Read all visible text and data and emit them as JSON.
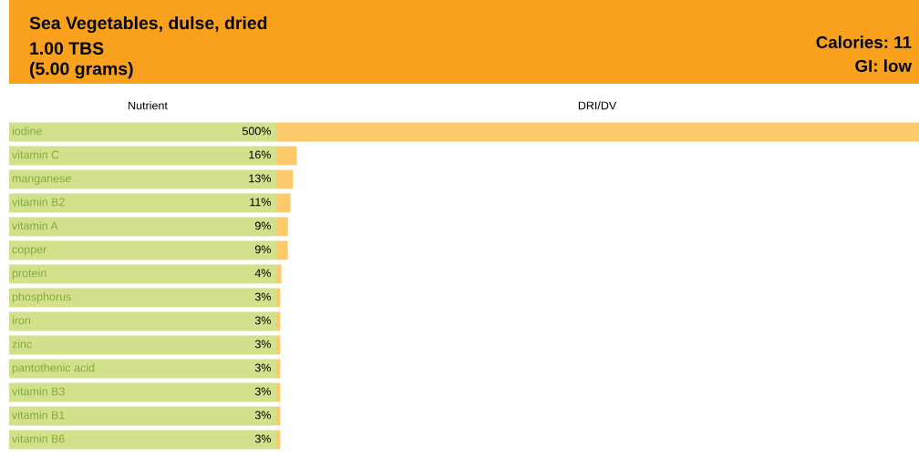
{
  "chart_data": {
    "type": "bar",
    "orientation": "horizontal",
    "title": "Sea Vegetables, dulse, dried",
    "subtitle": "1.00 TBS\n(5.00 grams)",
    "annotations": [
      "Calories: 11",
      "GI: low",
      "Nutrient",
      "DRI/DV"
    ],
    "categories": [
      "iodine",
      "vitamin C",
      "manganese",
      "vitamin B2",
      "vitamin A",
      "copper",
      "protein",
      "phosphorus",
      "iron",
      "zinc",
      "pantothenic acid",
      "vitamin B3",
      "vitamin B1",
      "vitamin B6"
    ],
    "values": [
      500,
      16,
      13,
      11,
      9,
      9,
      4,
      3,
      3,
      3,
      3,
      3,
      3,
      3
    ],
    "value_labels": [
      "500%",
      "16%",
      "13%",
      "11%",
      "9%",
      "9%",
      "4%",
      "3%",
      "3%",
      "3%",
      "3%",
      "3%",
      "3%",
      "3%"
    ],
    "color": "#fec96b"
  }
}
